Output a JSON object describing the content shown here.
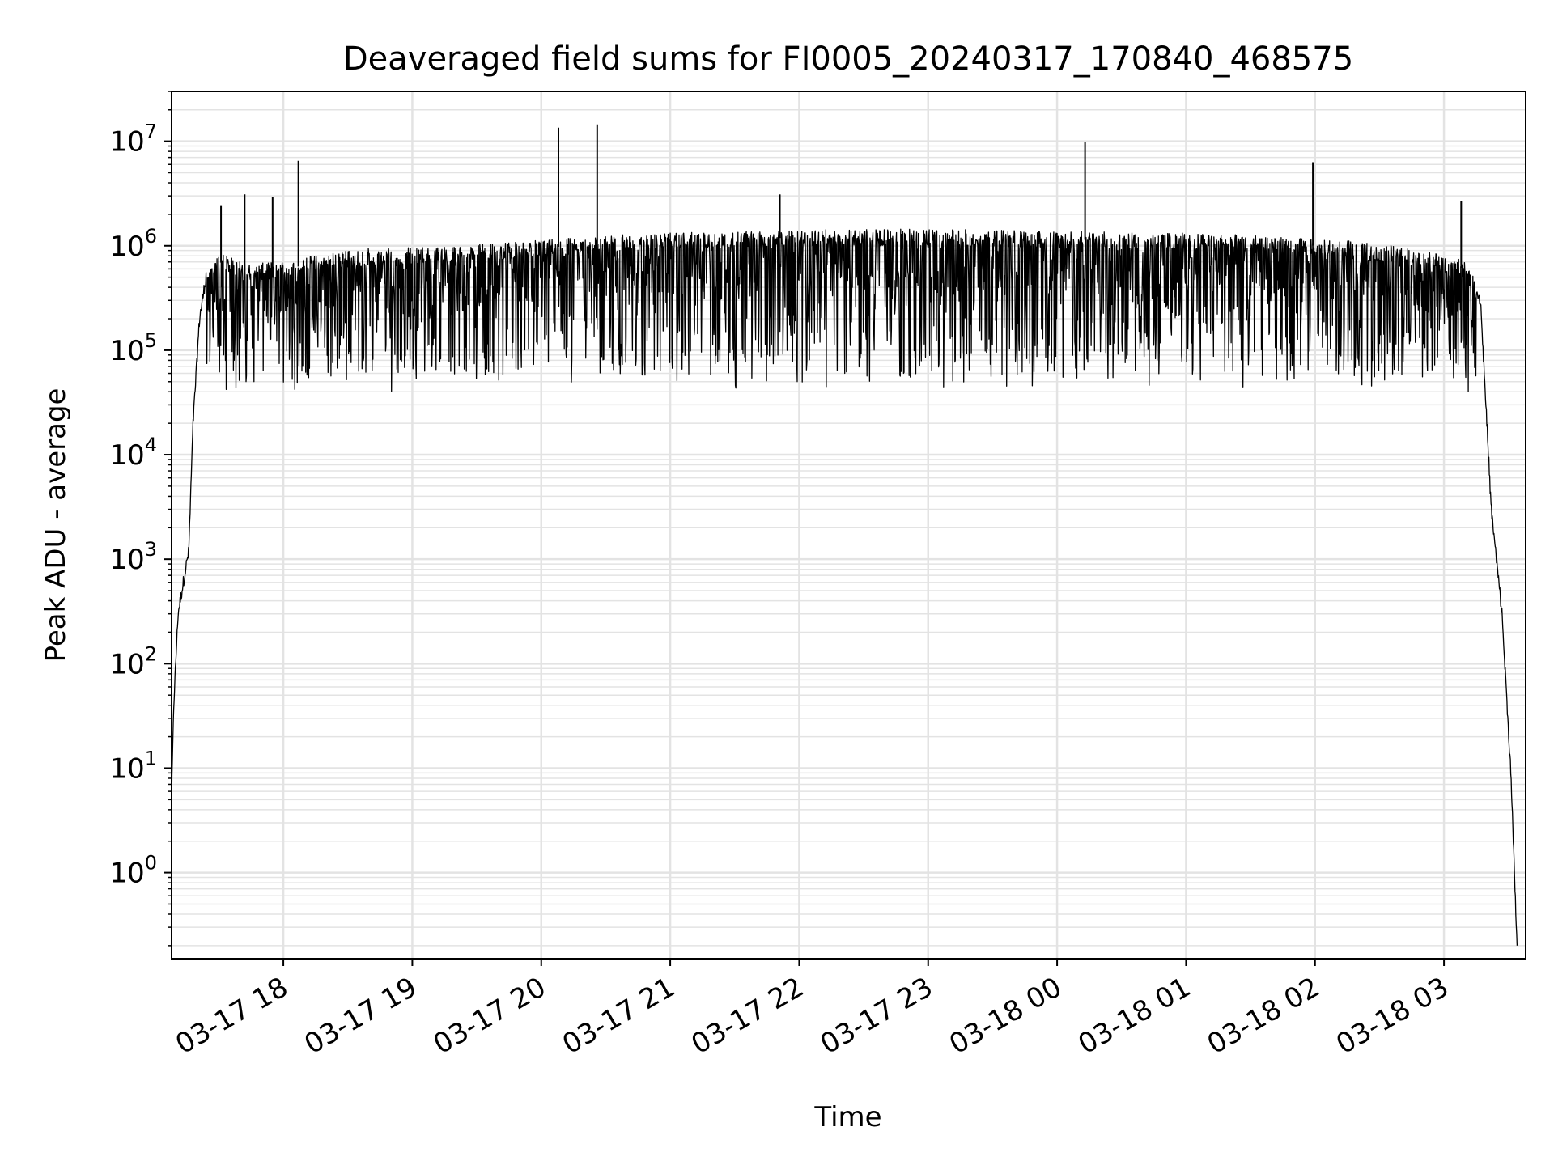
{
  "chart_data": {
    "type": "line",
    "title": "Deaveraged field sums for FI0005_20240317_170840_468575",
    "xlabel": "Time",
    "ylabel": "Peak ADU - average",
    "yscale": "log",
    "ylim": [
      0.15,
      30000000
    ],
    "xlim": [
      "2024-03-17 17:08",
      "2024-03-18 03:38"
    ],
    "grid": true,
    "line_color": "#000000",
    "grid_color": "#e3e3e3",
    "x_ticks": [
      {
        "value": "2024-03-17 18:00",
        "label": "03-17 18"
      },
      {
        "value": "2024-03-17 19:00",
        "label": "03-17 19"
      },
      {
        "value": "2024-03-17 20:00",
        "label": "03-17 20"
      },
      {
        "value": "2024-03-17 21:00",
        "label": "03-17 21"
      },
      {
        "value": "2024-03-17 22:00",
        "label": "03-17 22"
      },
      {
        "value": "2024-03-17 23:00",
        "label": "03-17 23"
      },
      {
        "value": "2024-03-18 00:00",
        "label": "03-18 00"
      },
      {
        "value": "2024-03-18 01:00",
        "label": "03-18 01"
      },
      {
        "value": "2024-03-18 02:00",
        "label": "03-18 02"
      },
      {
        "value": "2024-03-18 03:00",
        "label": "03-18 03"
      }
    ],
    "y_ticks": [
      {
        "value": 1,
        "base": "10",
        "exp": "0"
      },
      {
        "value": 10,
        "base": "10",
        "exp": "1"
      },
      {
        "value": 100,
        "base": "10",
        "exp": "2"
      },
      {
        "value": 1000,
        "base": "10",
        "exp": "3"
      },
      {
        "value": 10000,
        "base": "10",
        "exp": "4"
      },
      {
        "value": 100000,
        "base": "10",
        "exp": "5"
      },
      {
        "value": 1000000,
        "base": "10",
        "exp": "6"
      },
      {
        "value": 10000000,
        "base": "10",
        "exp": "7"
      }
    ],
    "series": [
      {
        "style": "dense-noisy-line",
        "envelope": [
          {
            "x": "2024-03-17 17:08",
            "y": 5
          },
          {
            "x": "2024-03-17 17:09",
            "y": 40
          },
          {
            "x": "2024-03-17 17:11",
            "y": 300
          },
          {
            "x": "2024-03-17 17:14",
            "y": 700
          },
          {
            "x": "2024-03-17 17:16",
            "y": 1200
          },
          {
            "x": "2024-03-17 17:18",
            "y": 20000
          },
          {
            "x": "2024-03-17 17:21",
            "y": 200000
          },
          {
            "x": "2024-03-17 17:24",
            "y": 500000
          },
          {
            "x": "2024-03-17 17:30",
            "y": 700000
          },
          {
            "x": "2024-03-17 17:45",
            "y": 550000
          },
          {
            "x": "2024-03-17 18:00",
            "y": 600000
          },
          {
            "x": "2024-03-17 18:30",
            "y": 750000
          },
          {
            "x": "2024-03-17 19:00",
            "y": 800000
          },
          {
            "x": "2024-03-17 19:30",
            "y": 850000
          },
          {
            "x": "2024-03-17 20:00",
            "y": 950000
          },
          {
            "x": "2024-03-17 20:30",
            "y": 1050000
          },
          {
            "x": "2024-03-17 21:00",
            "y": 1100000
          },
          {
            "x": "2024-03-17 22:00",
            "y": 1200000
          },
          {
            "x": "2024-03-17 23:00",
            "y": 1200000
          },
          {
            "x": "2024-03-18 00:00",
            "y": 1150000
          },
          {
            "x": "2024-03-18 01:00",
            "y": 1100000
          },
          {
            "x": "2024-03-18 02:00",
            "y": 1000000
          },
          {
            "x": "2024-03-18 02:45",
            "y": 800000
          },
          {
            "x": "2024-03-18 03:10",
            "y": 600000
          },
          {
            "x": "2024-03-18 03:17",
            "y": 300000
          },
          {
            "x": "2024-03-18 03:22",
            "y": 3000
          },
          {
            "x": "2024-03-18 03:27",
            "y": 300
          },
          {
            "x": "2024-03-18 03:31",
            "y": 10
          },
          {
            "x": "2024-03-18 03:34",
            "y": 0.2
          }
        ],
        "dip_floor": 50000,
        "spikes": [
          {
            "x": "2024-03-17 17:31",
            "y": 2400000
          },
          {
            "x": "2024-03-17 17:42",
            "y": 3100000
          },
          {
            "x": "2024-03-17 17:55",
            "y": 2900000
          },
          {
            "x": "2024-03-17 18:07",
            "y": 6500000
          },
          {
            "x": "2024-03-17 20:08",
            "y": 13500000
          },
          {
            "x": "2024-03-17 20:26",
            "y": 14500000
          },
          {
            "x": "2024-03-17 21:51",
            "y": 3100000
          },
          {
            "x": "2024-03-18 00:13",
            "y": 9800000
          },
          {
            "x": "2024-03-18 01:59",
            "y": 6300000
          },
          {
            "x": "2024-03-18 03:08",
            "y": 2700000
          }
        ]
      }
    ]
  }
}
